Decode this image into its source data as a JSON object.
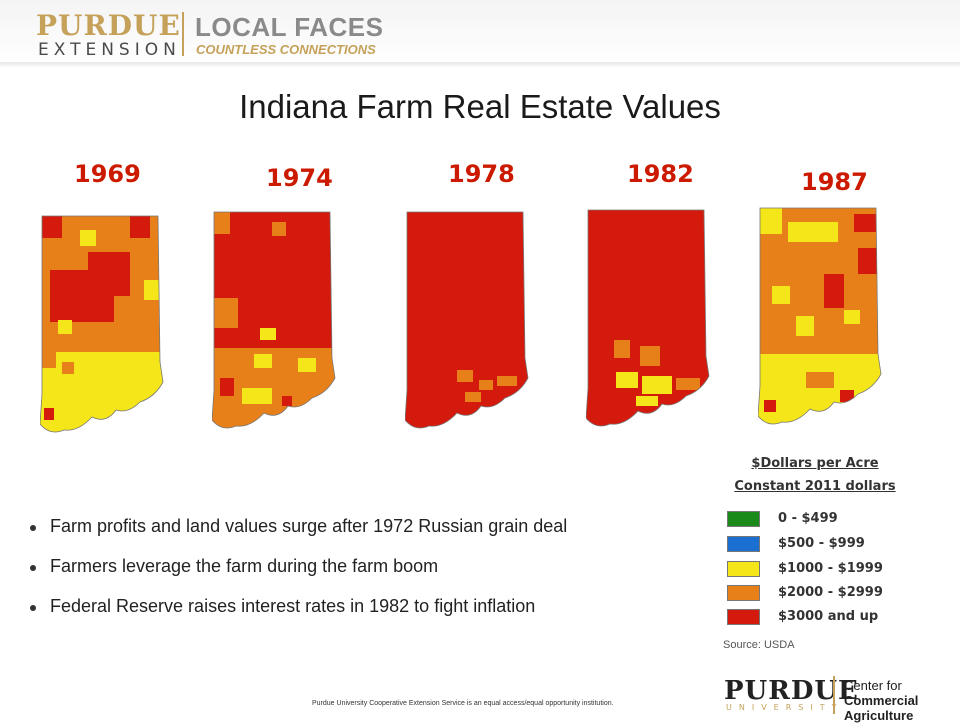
{
  "header": {
    "logo_purdue": "PURDUE",
    "logo_extension": "EXTENSION",
    "logo_local_faces": "LOCAL FACES",
    "logo_tagline": "COUNTLESS CONNECTIONS"
  },
  "title": "Indiana Farm Real Estate Values",
  "maps": [
    {
      "year": "1969"
    },
    {
      "year": "1974"
    },
    {
      "year": "1978"
    },
    {
      "year": "1982"
    },
    {
      "year": "1987"
    }
  ],
  "legend": {
    "title_line1": "$Dollars per Acre",
    "title_line2": "Constant 2011 dollars",
    "items": [
      {
        "label": "0 - $499",
        "color": "#1a8a1a"
      },
      {
        "label": "$500 - $999",
        "color": "#1a6fd0"
      },
      {
        "label": "$1000 - $1999",
        "color": "#f5e61a"
      },
      {
        "label": "$2000 - $2999",
        "color": "#e8801a"
      },
      {
        "label": "$3000 and up",
        "color": "#d41a0c"
      }
    ],
    "source": "Source: USDA"
  },
  "bullets": [
    "Farm profits and land values surge after 1972 Russian grain deal",
    "Farmers leverage the farm during the farm boom",
    "Federal Reserve raises interest rates in 1982 to fight inflation"
  ],
  "footer": {
    "note": "Purdue University Cooperative Extension Service is an equal access/equal opportunity institution.",
    "purdue": "PURDUE",
    "university": "UNIVERSITY",
    "center_line1": "Center for",
    "center_line2": "Commercial Agriculture"
  }
}
